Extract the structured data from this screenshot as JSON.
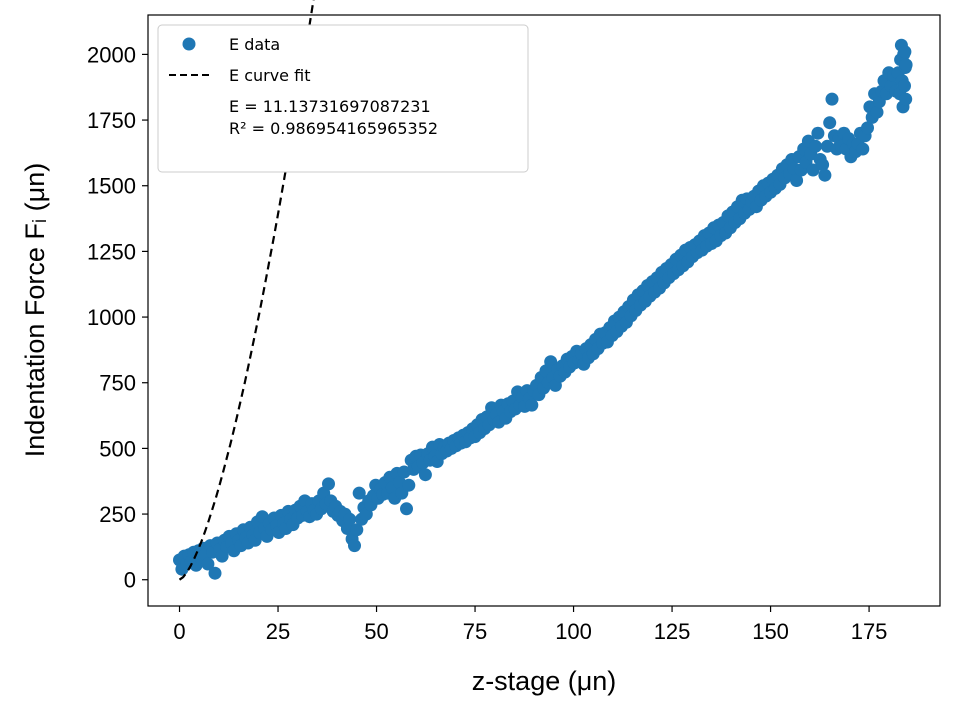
{
  "chart_data": {
    "type": "scatter",
    "xlabel": "z-stage (μn)",
    "ylabel": "Indentation Force Fᵢ (μn)",
    "xlim": [
      -8,
      193
    ],
    "ylim": [
      -100,
      2150
    ],
    "x_ticks": [
      "0",
      "25",
      "50",
      "75",
      "100",
      "125",
      "150",
      "175"
    ],
    "y_ticks": [
      "0",
      "250",
      "500",
      "750",
      "1000",
      "1250",
      "1500",
      "1750",
      "2000"
    ],
    "grid": false,
    "legend_placement": "upper-left",
    "fit": {
      "coefficient": 11.1373,
      "exponent": 1.5
    },
    "series": [
      {
        "name": "E data",
        "kind": "scatter",
        "color": "#1f77b4",
        "points": [
          [
            0,
            75
          ],
          [
            0.6,
            40
          ],
          [
            1.2,
            90
          ],
          [
            1.8,
            60
          ],
          [
            2.4,
            95
          ],
          [
            3,
            70
          ],
          [
            3.6,
            105
          ],
          [
            4.2,
            55
          ],
          [
            4.8,
            110
          ],
          [
            5.4,
            85
          ],
          [
            6,
            120
          ],
          [
            6.6,
            95
          ],
          [
            7.2,
            60
          ],
          [
            7.8,
            130
          ],
          [
            8.4,
            105
          ],
          [
            9,
            25
          ],
          [
            9.6,
            140
          ],
          [
            10.2,
            115
          ],
          [
            10.8,
            90
          ],
          [
            11.4,
            150
          ],
          [
            12,
            125
          ],
          [
            12.6,
            165
          ],
          [
            13.2,
            140
          ],
          [
            13.8,
            110
          ],
          [
            14.4,
            175
          ],
          [
            15,
            150
          ],
          [
            15.6,
            130
          ],
          [
            16.2,
            190
          ],
          [
            16.8,
            160
          ],
          [
            17.4,
            140
          ],
          [
            18,
            200
          ],
          [
            18.6,
            170
          ],
          [
            19.2,
            150
          ],
          [
            19.8,
            220
          ],
          [
            20.4,
            180
          ],
          [
            21,
            240
          ],
          [
            21.6,
            195
          ],
          [
            22.2,
            165
          ],
          [
            22.8,
            215
          ],
          [
            23.4,
            190
          ],
          [
            24,
            235
          ],
          [
            24.6,
            205
          ],
          [
            25.2,
            180
          ],
          [
            25.8,
            245
          ],
          [
            26.4,
            215
          ],
          [
            27,
            195
          ],
          [
            27.6,
            260
          ],
          [
            28.2,
            230
          ],
          [
            28.8,
            210
          ],
          [
            29.4,
            265
          ],
          [
            30,
            235
          ],
          [
            30.6,
            280
          ],
          [
            31.2,
            245
          ],
          [
            31.8,
            300
          ],
          [
            32.4,
            260
          ],
          [
            33,
            240
          ],
          [
            33.6,
            290
          ],
          [
            34.2,
            265
          ],
          [
            34.8,
            250
          ],
          [
            35.4,
            300
          ],
          [
            36,
            270
          ],
          [
            36.6,
            330
          ],
          [
            37.2,
            290
          ],
          [
            37.8,
            365
          ],
          [
            38.4,
            300
          ],
          [
            39,
            260
          ],
          [
            39.6,
            280
          ],
          [
            40.2,
            245
          ],
          [
            40.8,
            260
          ],
          [
            41.4,
            225
          ],
          [
            42,
            250
          ],
          [
            42.6,
            195
          ],
          [
            43.2,
            230
          ],
          [
            43.8,
            155
          ],
          [
            44.4,
            130
          ],
          [
            45,
            190
          ],
          [
            45.6,
            330
          ],
          [
            46.2,
            230
          ],
          [
            46.8,
            275
          ],
          [
            47.4,
            250
          ],
          [
            48,
            300
          ],
          [
            48.6,
            285
          ],
          [
            49.2,
            320
          ],
          [
            49.8,
            360
          ],
          [
            50.4,
            310
          ],
          [
            51,
            345
          ],
          [
            51.6,
            325
          ],
          [
            52.2,
            370
          ],
          [
            52.8,
            330
          ],
          [
            53.4,
            390
          ],
          [
            54,
            350
          ],
          [
            54.6,
            310
          ],
          [
            55.2,
            405
          ],
          [
            55.8,
            370
          ],
          [
            56.4,
            330
          ],
          [
            57,
            410
          ],
          [
            57.6,
            270
          ],
          [
            58.2,
            360
          ],
          [
            58.8,
            455
          ],
          [
            59.4,
            420
          ],
          [
            60,
            470
          ],
          [
            60.6,
            430
          ],
          [
            61.2,
            475
          ],
          [
            61.8,
            445
          ],
          [
            62.4,
            400
          ],
          [
            63,
            480
          ],
          [
            63.6,
            455
          ],
          [
            64.2,
            505
          ],
          [
            64.8,
            470
          ],
          [
            65.4,
            450
          ],
          [
            66,
            515
          ],
          [
            66.6,
            480
          ],
          [
            67.2,
            505
          ],
          [
            67.8,
            490
          ],
          [
            68.4,
            520
          ],
          [
            69,
            500
          ],
          [
            69.6,
            530
          ],
          [
            70.2,
            510
          ],
          [
            70.8,
            540
          ],
          [
            71.4,
            520
          ],
          [
            72,
            550
          ],
          [
            72.6,
            525
          ],
          [
            73.2,
            560
          ],
          [
            73.8,
            540
          ],
          [
            74.4,
            575
          ],
          [
            75,
            545
          ],
          [
            75.6,
            590
          ],
          [
            76.2,
            560
          ],
          [
            76.8,
            610
          ],
          [
            77.4,
            575
          ],
          [
            78,
            620
          ],
          [
            78.6,
            590
          ],
          [
            79.2,
            655
          ],
          [
            79.8,
            610
          ],
          [
            80.4,
            630
          ],
          [
            81,
            600
          ],
          [
            81.6,
            665
          ],
          [
            82.2,
            640
          ],
          [
            82.8,
            615
          ],
          [
            83.4,
            670
          ],
          [
            84,
            640
          ],
          [
            84.6,
            680
          ],
          [
            85.2,
            650
          ],
          [
            85.8,
            715
          ],
          [
            86.4,
            665
          ],
          [
            87,
            695
          ],
          [
            87.6,
            660
          ],
          [
            88.2,
            720
          ],
          [
            88.8,
            690
          ],
          [
            89.4,
            665
          ],
          [
            90,
            720
          ],
          [
            90.6,
            740
          ],
          [
            91.2,
            705
          ],
          [
            91.8,
            770
          ],
          [
            92.4,
            730
          ],
          [
            93,
            795
          ],
          [
            93.6,
            750
          ],
          [
            94.2,
            830
          ],
          [
            94.8,
            770
          ],
          [
            95.4,
            740
          ],
          [
            96,
            800
          ],
          [
            96.6,
            775
          ],
          [
            97.2,
            815
          ],
          [
            97.8,
            790
          ],
          [
            98.4,
            840
          ],
          [
            99,
            810
          ],
          [
            99.6,
            850
          ],
          [
            100.2,
            825
          ],
          [
            100.8,
            870
          ],
          [
            101.4,
            835
          ],
          [
            102,
            860
          ],
          [
            102.6,
            820
          ],
          [
            103.2,
            880
          ],
          [
            103.8,
            845
          ],
          [
            104.4,
            895
          ],
          [
            105,
            860
          ],
          [
            105.6,
            915
          ],
          [
            106.2,
            880
          ],
          [
            106.8,
            935
          ],
          [
            107.4,
            900
          ],
          [
            108,
            940
          ],
          [
            108.6,
            905
          ],
          [
            109.2,
            960
          ],
          [
            109.8,
            930
          ],
          [
            110.4,
            985
          ],
          [
            111,
            945
          ],
          [
            111.6,
            1000
          ],
          [
            112.2,
            965
          ],
          [
            112.8,
            1020
          ],
          [
            113.4,
            980
          ],
          [
            114,
            1040
          ],
          [
            114.6,
            1005
          ],
          [
            115.2,
            1065
          ],
          [
            115.8,
            1025
          ],
          [
            116.4,
            1085
          ],
          [
            117,
            1045
          ],
          [
            117.6,
            1100
          ],
          [
            118.2,
            1060
          ],
          [
            118.8,
            1120
          ],
          [
            119.4,
            1080
          ],
          [
            120,
            1135
          ],
          [
            120.6,
            1095
          ],
          [
            121.2,
            1150
          ],
          [
            121.8,
            1110
          ],
          [
            122.4,
            1170
          ],
          [
            123,
            1130
          ],
          [
            123.6,
            1185
          ],
          [
            124.2,
            1150
          ],
          [
            124.8,
            1200
          ],
          [
            125.4,
            1165
          ],
          [
            126,
            1220
          ],
          [
            126.6,
            1180
          ],
          [
            127.2,
            1235
          ],
          [
            127.8,
            1195
          ],
          [
            128.4,
            1255
          ],
          [
            129,
            1210
          ],
          [
            129.6,
            1265
          ],
          [
            130.2,
            1230
          ],
          [
            130.8,
            1275
          ],
          [
            131.4,
            1245
          ],
          [
            132,
            1290
          ],
          [
            132.6,
            1255
          ],
          [
            133.2,
            1310
          ],
          [
            133.8,
            1270
          ],
          [
            134.4,
            1320
          ],
          [
            135,
            1280
          ],
          [
            135.6,
            1340
          ],
          [
            136.2,
            1290
          ],
          [
            136.8,
            1350
          ],
          [
            137.4,
            1310
          ],
          [
            138,
            1360
          ],
          [
            138.6,
            1320
          ],
          [
            139.2,
            1385
          ],
          [
            139.8,
            1340
          ],
          [
            140.4,
            1400
          ],
          [
            141,
            1360
          ],
          [
            141.6,
            1420
          ],
          [
            142.2,
            1375
          ],
          [
            142.8,
            1445
          ],
          [
            143.4,
            1395
          ],
          [
            144,
            1450
          ],
          [
            144.6,
            1410
          ],
          [
            145.2,
            1440
          ],
          [
            145.8,
            1460
          ],
          [
            146.4,
            1420
          ],
          [
            147,
            1480
          ],
          [
            147.6,
            1445
          ],
          [
            148.2,
            1500
          ],
          [
            148.8,
            1460
          ],
          [
            149.4,
            1510
          ],
          [
            150,
            1475
          ],
          [
            150.6,
            1525
          ],
          [
            151.2,
            1490
          ],
          [
            151.8,
            1540
          ],
          [
            152.4,
            1505
          ],
          [
            153,
            1565
          ],
          [
            153.6,
            1530
          ],
          [
            154.2,
            1580
          ],
          [
            154.8,
            1545
          ],
          [
            155.4,
            1600
          ],
          [
            156,
            1565
          ],
          [
            156.6,
            1520
          ],
          [
            157.2,
            1610
          ],
          [
            157.8,
            1560
          ],
          [
            158.4,
            1640
          ],
          [
            159,
            1590
          ],
          [
            159.6,
            1670
          ],
          [
            160.2,
            1620
          ],
          [
            160.8,
            1560
          ],
          [
            161.4,
            1650
          ],
          [
            162,
            1700
          ],
          [
            162.6,
            1600
          ],
          [
            163.2,
            1580
          ],
          [
            163.8,
            1540
          ],
          [
            164.4,
            1650
          ],
          [
            165,
            1740
          ],
          [
            165.6,
            1830
          ],
          [
            166.2,
            1690
          ],
          [
            166.8,
            1640
          ],
          [
            167.4,
            1680
          ],
          [
            168,
            1650
          ],
          [
            168.6,
            1700
          ],
          [
            169.2,
            1640
          ],
          [
            169.8,
            1680
          ],
          [
            170.4,
            1610
          ],
          [
            171,
            1660
          ],
          [
            171.6,
            1630
          ],
          [
            172.2,
            1660
          ],
          [
            172.8,
            1700
          ],
          [
            173.4,
            1640
          ],
          [
            174,
            1690
          ],
          [
            174.6,
            1720
          ],
          [
            175.2,
            1800
          ],
          [
            175.8,
            1760
          ],
          [
            176.4,
            1850
          ],
          [
            177,
            1780
          ],
          [
            177.6,
            1820
          ],
          [
            178.2,
            1860
          ],
          [
            178.8,
            1900
          ],
          [
            179.4,
            1850
          ],
          [
            180,
            1930
          ],
          [
            180.6,
            1880
          ],
          [
            181.2,
            1920
          ],
          [
            181.8,
            1860
          ],
          [
            182.4,
            1930
          ],
          [
            182.8,
            1850
          ],
          [
            183,
            1980
          ],
          [
            183.2,
            2035
          ],
          [
            183.4,
            1900
          ],
          [
            183.6,
            1800
          ],
          [
            183.8,
            2000
          ],
          [
            184,
            1880
          ],
          [
            184.1,
            2010
          ],
          [
            184.2,
            1950
          ],
          [
            184.3,
            1830
          ],
          [
            184.4,
            1960
          ]
        ]
      },
      {
        "name": "E curve fit",
        "kind": "line",
        "color": "#000000",
        "dash": "dashed",
        "x_range": [
          0,
          184
        ]
      }
    ],
    "legend": {
      "entries": [
        "E data",
        "E curve fit"
      ],
      "annotation": [
        "E = 11.13731697087231",
        "R² = 0.986954165965352"
      ]
    }
  }
}
